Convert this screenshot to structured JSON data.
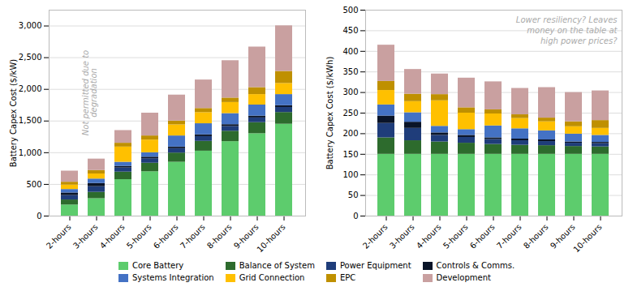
{
  "chart_data": [
    {
      "type": "bar",
      "stacked": true,
      "categories": [
        "2-hours",
        "3-hours",
        "4-hours",
        "5-hours",
        "6-hours",
        "7-hours",
        "8-hours",
        "9-hours",
        "10-hours"
      ],
      "series": [
        {
          "name": "Core Battery",
          "color": "#5dcc6d",
          "values": [
            175,
            275,
            575,
            700,
            850,
            1025,
            1175,
            1300,
            1450
          ]
        },
        {
          "name": "Balance of System",
          "color": "#2d6b2d",
          "values": [
            80,
            100,
            120,
            135,
            145,
            155,
            165,
            175,
            185
          ]
        },
        {
          "name": "Power Equipment",
          "color": "#1f3d7a",
          "values": [
            70,
            90,
            65,
            70,
            70,
            75,
            75,
            75,
            80
          ]
        },
        {
          "name": "Controls & Comms.",
          "color": "#0a1428",
          "values": [
            40,
            50,
            25,
            25,
            25,
            28,
            28,
            28,
            28
          ]
        },
        {
          "name": "Systems Integration",
          "color": "#4472c4",
          "values": [
            55,
            70,
            65,
            70,
            175,
            175,
            175,
            175,
            175
          ]
        },
        {
          "name": "Grid Connection",
          "color": "#ffc000",
          "values": [
            70,
            80,
            240,
            200,
            175,
            175,
            175,
            165,
            175
          ]
        },
        {
          "name": "EPC",
          "color": "#bf9000",
          "values": [
            45,
            55,
            60,
            65,
            60,
            65,
            70,
            110,
            190
          ]
        },
        {
          "name": "Development",
          "color": "#c9a0a0",
          "values": [
            175,
            180,
            200,
            360,
            410,
            450,
            590,
            640,
            720
          ]
        }
      ],
      "ylabel": "Battery Capex Cost ($/kW)",
      "ylim": [
        0,
        3250
      ],
      "yticks": [
        0,
        500,
        {
          "value": 1000,
          "label": "1,000"
        },
        {
          "value": 1500,
          "label": "1,500"
        },
        {
          "value": 2000,
          "label": "2,000"
        },
        {
          "value": 2500,
          "label": "2,500"
        },
        {
          "value": 3000,
          "label": "3,000"
        }
      ],
      "grid": true,
      "legend": "bottom",
      "annotations": [
        {
          "text": "Not permitted due to\ndegradation"
        }
      ]
    },
    {
      "type": "bar",
      "stacked": true,
      "categories": [
        "2-hours",
        "3-hours",
        "4-hours",
        "5-hours",
        "6-hours",
        "7-hours",
        "8-hours",
        "9-hours",
        "10-hours"
      ],
      "series": [
        {
          "name": "Core Battery",
          "color": "#5dcc6d",
          "values": [
            150,
            150,
            150,
            150,
            150,
            150,
            150,
            150,
            150
          ]
        },
        {
          "name": "Balance of System",
          "color": "#2d6b2d",
          "values": [
            40,
            33,
            30,
            27,
            24,
            22,
            21,
            19,
            18
          ]
        },
        {
          "name": "Power Equipment",
          "color": "#1f3d7a",
          "values": [
            35,
            30,
            16,
            14,
            12,
            11,
            10,
            8,
            8
          ]
        },
        {
          "name": "Controls & Comms.",
          "color": "#0a1428",
          "values": [
            18,
            15,
            6,
            5,
            4,
            4,
            4,
            3,
            3
          ]
        },
        {
          "name": "Systems Integration",
          "color": "#4472c4",
          "values": [
            27,
            23,
            16,
            14,
            29,
            25,
            22,
            19,
            17
          ]
        },
        {
          "name": "Grid Connection",
          "color": "#ffc000",
          "values": [
            35,
            27,
            62,
            40,
            29,
            25,
            22,
            18,
            17
          ]
        },
        {
          "name": "EPC",
          "color": "#bf9000",
          "values": [
            22,
            18,
            15,
            13,
            10,
            9,
            9,
            12,
            19
          ]
        },
        {
          "name": "Development",
          "color": "#c9a0a0",
          "values": [
            88,
            60,
            50,
            72,
            68,
            64,
            74,
            71,
            72
          ]
        }
      ],
      "ylabel": "Battery Capex Cost ($/kWh)",
      "ylim": [
        0,
        500
      ],
      "yticks": [
        0,
        50,
        100,
        150,
        200,
        250,
        300,
        350,
        400,
        450,
        500
      ],
      "grid": true,
      "annotations": [
        {
          "text": "Lower resiliency? Leaves\nmoney on the table at\nhigh power prices?"
        }
      ]
    }
  ]
}
